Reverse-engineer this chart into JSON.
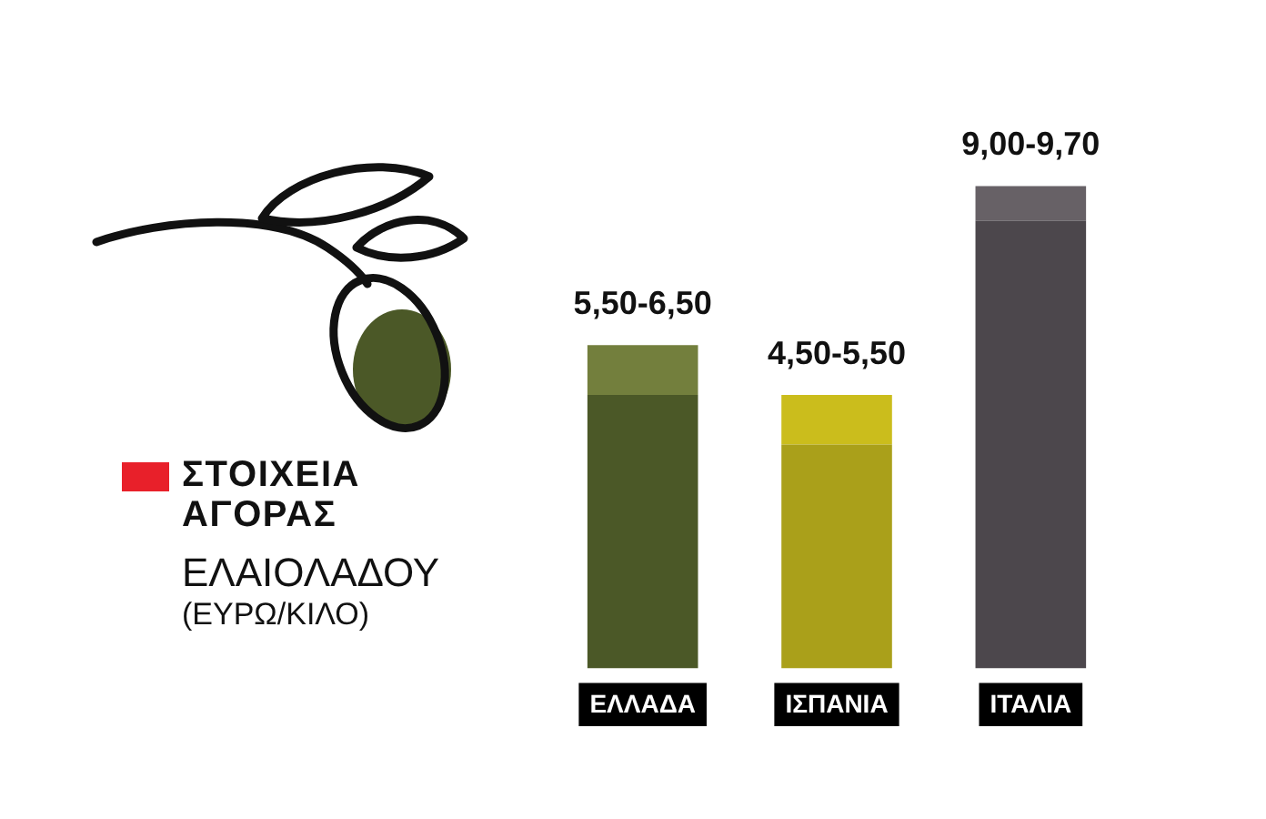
{
  "chart_data": {
    "type": "bar",
    "title": "ΣΤΟΙΧΕΙΑ ΑΓΟΡΑΣ",
    "subtitle": "ΕΛΑΙΟΛΑΔΟΥ",
    "categories": [
      "ΕΛΛΑΔΑ",
      "ΙΣΠΑΝΙΑ",
      "ΙΤΑΛΙΑ"
    ],
    "series": [
      {
        "values": [
          5.5,
          4.5,
          9.0
        ],
        "colors": [
          "#4b5827",
          "#aaa01a",
          "#4c474c"
        ],
        "value_labels": [
          "5,50-",
          "4,50-",
          "9,00-"
        ]
      },
      {
        "values": [
          1.0,
          1.0,
          0.7
        ],
        "colors": [
          "#737f3d",
          "#cbbd1c",
          "#676166"
        ]
      }
    ],
    "stacked": true,
    "totals": [
      "6,50",
      "5,50",
      "9,70"
    ],
    "tick_labels": "x",
    "annotations": [
      "(ΕΥΡΩ/ΚΙΛΟ)"
    ]
  }
}
